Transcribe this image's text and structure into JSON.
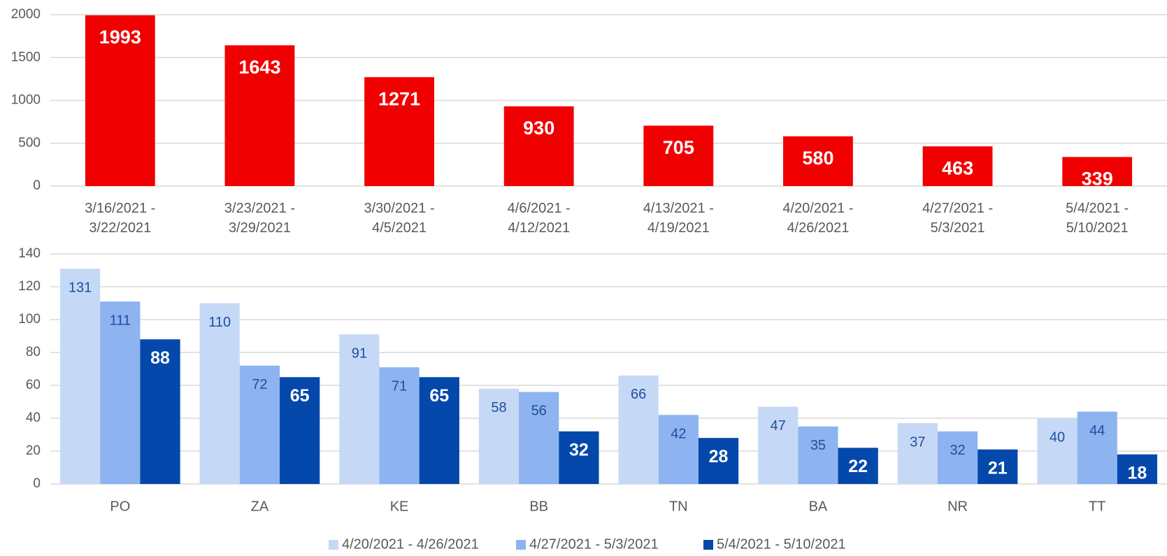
{
  "chart_data": [
    {
      "type": "bar",
      "categories": [
        "3/16/2021 - 3/22/2021",
        "3/23/2021 - 3/29/2021",
        "3/30/2021 - 4/5/2021",
        "4/6/2021 - 4/12/2021",
        "4/13/2021 - 4/19/2021",
        "4/20/2021 - 4/26/2021",
        "4/27/2021 - 5/3/2021",
        "5/4/2021 - 5/10/2021"
      ],
      "values": [
        1993,
        1643,
        1271,
        930,
        705,
        580,
        463,
        339
      ],
      "color": "#f00000",
      "ylim": [
        0,
        2000
      ],
      "yticks": [
        0,
        500,
        1000,
        1500,
        2000
      ],
      "grid": true
    },
    {
      "type": "grouped_bar",
      "categories": [
        "PO",
        "ZA",
        "KE",
        "BB",
        "TN",
        "BA",
        "NR",
        "TT"
      ],
      "series": [
        {
          "name": "4/20/2021 - 4/26/2021",
          "color": "#c5d9f7",
          "values": [
            131,
            110,
            91,
            58,
            66,
            47,
            37,
            40
          ]
        },
        {
          "name": "4/27/2021 - 5/3/2021",
          "color": "#8db4f0",
          "values": [
            111,
            72,
            71,
            56,
            42,
            35,
            32,
            44
          ]
        },
        {
          "name": "5/4/2021 - 5/10/2021",
          "color": "#0448ac",
          "values": [
            88,
            65,
            65,
            32,
            28,
            22,
            21,
            18
          ]
        }
      ],
      "ylim": [
        0,
        140
      ],
      "yticks": [
        0,
        20,
        40,
        60,
        80,
        100,
        120,
        140
      ],
      "grid": true,
      "legend": "bottom"
    }
  ]
}
